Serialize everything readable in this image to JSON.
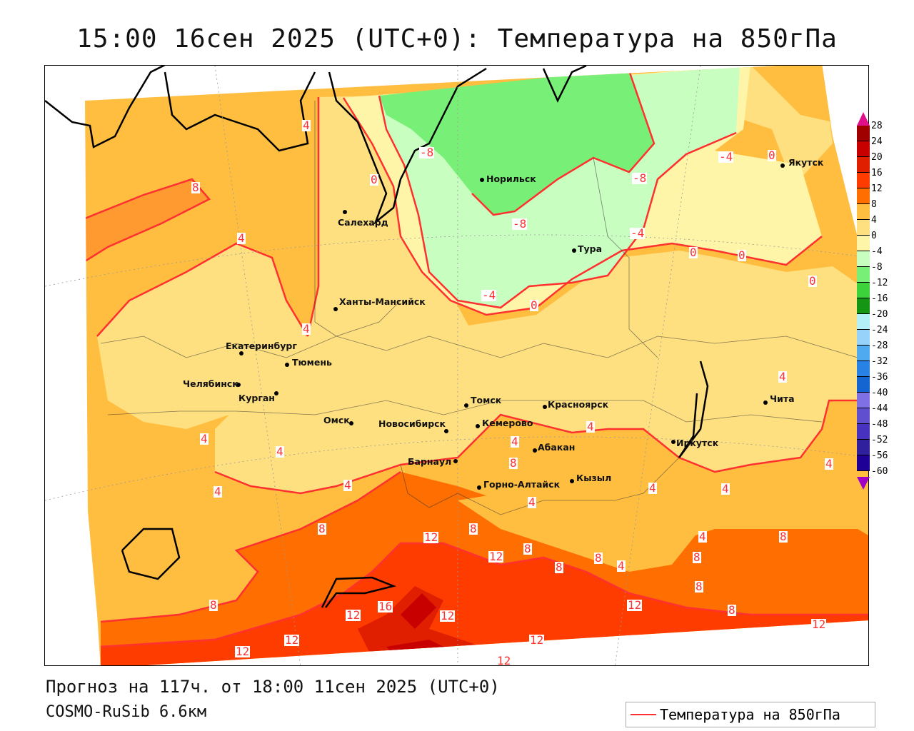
{
  "title": "15:00 16сен 2025 (UTC+0): Температура на 850гПа",
  "forecast_info": "Прогноз на 117ч. от 18:00 11сен 2025 (UTC+0)",
  "model": "COSMO-RuSib 6.6км",
  "legend": {
    "label": "Температура на 850гПа",
    "line_color": "#ff3030"
  },
  "colorbar": {
    "ticks": [
      "28",
      "24",
      "20",
      "16",
      "12",
      "8",
      "4",
      "0",
      "-4",
      "-8",
      "-12",
      "-16",
      "-20",
      "-24",
      "-28",
      "-32",
      "-36",
      "-40",
      "-44",
      "-48",
      "-52",
      "-56",
      "-60"
    ],
    "colors": [
      "#a00000",
      "#c80000",
      "#e01e00",
      "#ff3c00",
      "#ff6e00",
      "#ffbe40",
      "#ffe080",
      "#fff5a8",
      "#c8ffc0",
      "#78f078",
      "#3cd23c",
      "#149614",
      "#b4f0f8",
      "#96d2fa",
      "#50aaf0",
      "#2882e6",
      "#1464d2",
      "#8070e6",
      "#6050d0",
      "#4632be",
      "#30209e",
      "#1e0096"
    ],
    "top_arrow": "#e0108c",
    "bottom_arrow": "#a000c8"
  },
  "cities": [
    "Норильск",
    "Салехард",
    "Тура",
    "Якутск",
    "Ханты-Мансийск",
    "Екатеринбург",
    "Тюмень",
    "Челябинск",
    "Курган",
    "Омск",
    "Новосибирск",
    "Томск",
    "Кемерово",
    "Красноярск",
    "Абакан",
    "Барнаул",
    "Горно-Алтайск",
    "Кызыл",
    "Иркутск",
    "Чита"
  ],
  "contour_labels": [
    "4",
    "8",
    "4",
    "0",
    "-8",
    "-4",
    "0",
    "-8",
    "-8",
    "-4",
    "0",
    "0",
    "0",
    "-4",
    "0",
    "4",
    "4",
    "4",
    "4",
    "4",
    "4",
    "8",
    "4",
    "4",
    "4",
    "4",
    "4",
    "4",
    "8",
    "8",
    "12",
    "12",
    "8",
    "4",
    "8",
    "8",
    "8",
    "8",
    "4",
    "8",
    "8",
    "16",
    "12",
    "12",
    "12",
    "8",
    "12",
    "12",
    "12",
    "12",
    "12"
  ]
}
